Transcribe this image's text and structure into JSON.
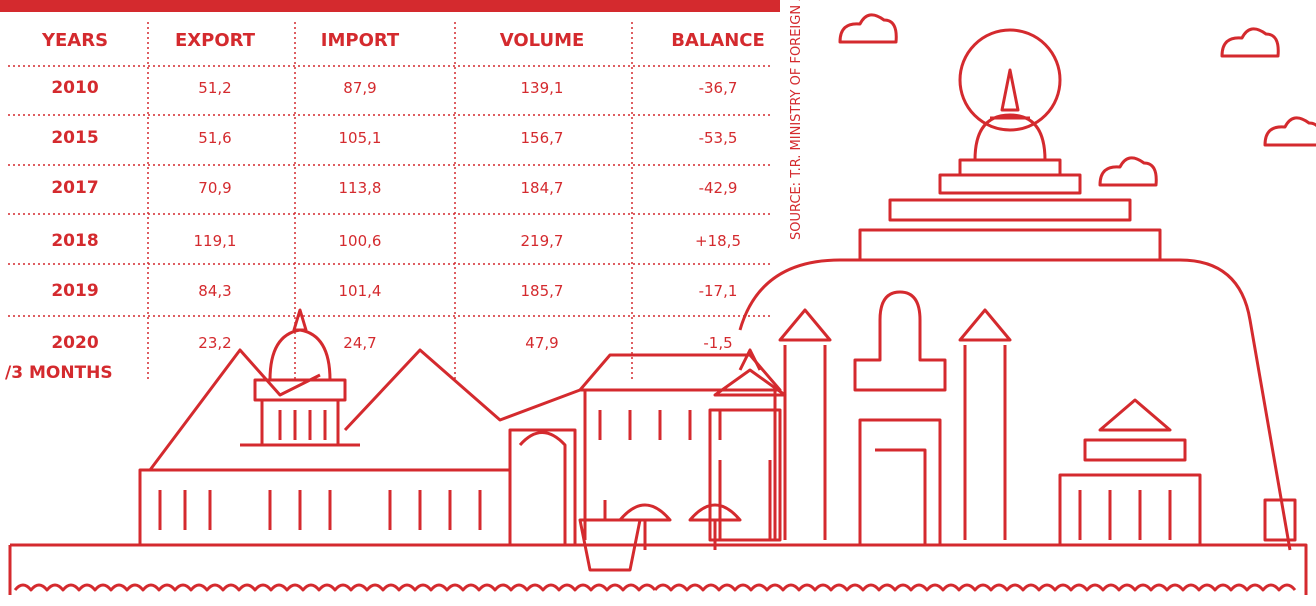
{
  "table": {
    "header": [
      "YEARS",
      "EXPORT",
      "IMPORT",
      "VOLUME",
      "BALANCE"
    ],
    "rows": [
      {
        "year": [
          "2010"
        ],
        "cells": [
          "51,2",
          "87,9",
          "139,1",
          "-36,7"
        ]
      },
      {
        "year": [
          "2015"
        ],
        "cells": [
          "51,6",
          "105,1",
          "156,7",
          "-53,5"
        ]
      },
      {
        "year": [
          "2017"
        ],
        "cells": [
          "70,9",
          "113,8",
          "184,7",
          "-42,9"
        ]
      },
      {
        "year": [
          "2018"
        ],
        "cells": [
          "119,1",
          "100,6",
          "219,7",
          "+18,5"
        ]
      },
      {
        "year": [
          "2019"
        ],
        "cells": [
          "84,3",
          "101,4",
          "185,7",
          "-17,1"
        ]
      },
      {
        "year": [
          "2020",
          "/3 MONTHS"
        ],
        "cells": [
          "23,2",
          "24,7",
          "47,9",
          "-1,5"
        ]
      }
    ]
  },
  "source": "SOURCE: T.R. MINISTRY OF FOREIGN A"
}
